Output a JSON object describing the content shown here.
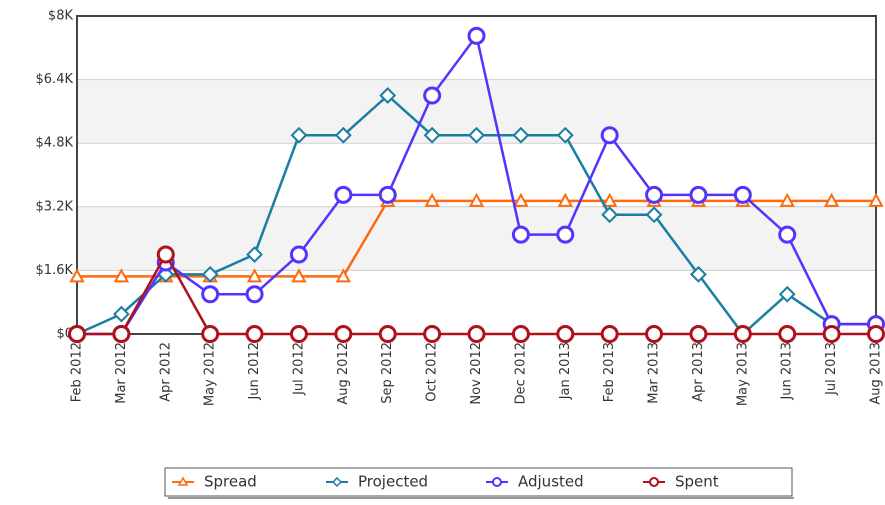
{
  "chart_data": {
    "type": "line",
    "categories": [
      "Feb 2012",
      "Mar 2012",
      "Apr 2012",
      "May 2012",
      "Jun 2012",
      "Jul 2012",
      "Aug 2012",
      "Sep 2012",
      "Oct 2012",
      "Nov 2012",
      "Dec 2012",
      "Jan 2013",
      "Feb 2013",
      "Mar 2013",
      "Apr 2013",
      "May 2013",
      "Jun 2013",
      "Jul 2013",
      "Aug 2013"
    ],
    "series": [
      {
        "name": "Spread",
        "color": "#ff6a10",
        "marker": "triangle",
        "values": [
          1450,
          1450,
          1450,
          1450,
          1450,
          1450,
          1450,
          3350,
          3350,
          3350,
          3350,
          3350,
          3350,
          3350,
          3350,
          3350,
          3350,
          3350,
          3350
        ]
      },
      {
        "name": "Projected",
        "color": "#1a7ea3",
        "marker": "diamond",
        "values": [
          0,
          500,
          1500,
          1500,
          2000,
          5000,
          5000,
          6000,
          5000,
          5000,
          5000,
          5000,
          3000,
          3000,
          1500,
          0,
          1000,
          250,
          250
        ]
      },
      {
        "name": "Adjusted",
        "color": "#5533ff",
        "marker": "circle",
        "values": [
          0,
          0,
          1800,
          1000,
          1000,
          2000,
          3500,
          3500,
          6000,
          7500,
          2500,
          2500,
          5000,
          3500,
          3500,
          3500,
          2500,
          250,
          250
        ]
      },
      {
        "name": "Spent",
        "color": "#b0101a",
        "marker": "circle",
        "values": [
          0,
          0,
          2000,
          0,
          0,
          0,
          0,
          0,
          0,
          0,
          0,
          0,
          0,
          0,
          0,
          0,
          0,
          0,
          0
        ]
      }
    ],
    "ylim": [
      0,
      8000
    ],
    "yticks": [
      {
        "value": 0,
        "label": "$0"
      },
      {
        "value": 1600,
        "label": "$1.6K"
      },
      {
        "value": 3200,
        "label": "$3.2K"
      },
      {
        "value": 4800,
        "label": "$4.8K"
      },
      {
        "value": 6400,
        "label": "$6.4K"
      },
      {
        "value": 8000,
        "label": "$8K"
      }
    ],
    "grid": true
  }
}
